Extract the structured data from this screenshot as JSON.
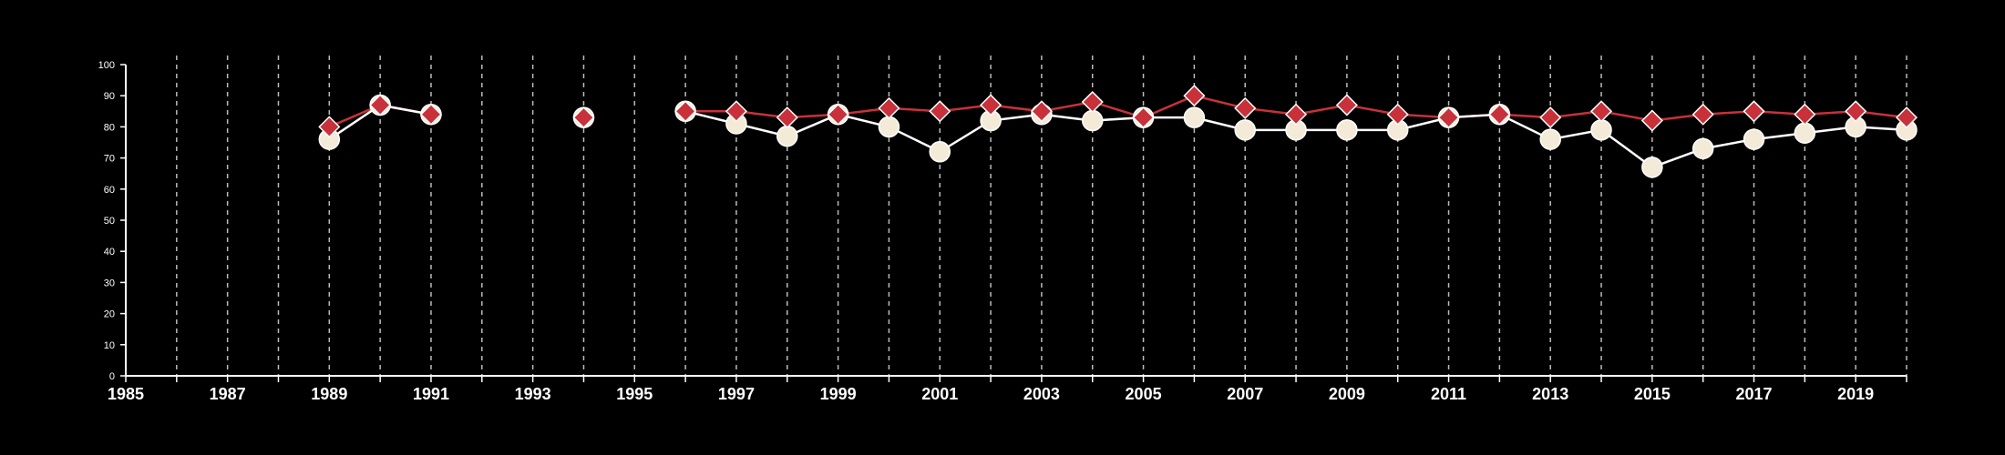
{
  "chart_data": {
    "type": "line",
    "title": "",
    "xlabel": "",
    "ylabel": "",
    "xlim": [
      1985,
      2020
    ],
    "ylim": [
      0,
      100
    ],
    "x_ticks": [
      1985,
      1987,
      1989,
      1991,
      1993,
      1995,
      1997,
      1999,
      2001,
      2003,
      2005,
      2007,
      2009,
      2011,
      2013,
      2015,
      2017,
      2019
    ],
    "y_ticks": [
      0,
      10,
      20,
      30,
      40,
      50,
      60,
      70,
      80,
      90,
      100
    ],
    "vertical_gridlines": "dashed at every year",
    "legend": "none",
    "background": "#000000",
    "axis_color": "#ffffff",
    "series": [
      {
        "marker": "circle",
        "line_color": "#ffffff",
        "marker_fill": "#f4ead8",
        "x": [
          1989,
          1990,
          1991,
          1994,
          1996,
          1997,
          1998,
          1999,
          2000,
          2001,
          2002,
          2003,
          2004,
          2005,
          2006,
          2007,
          2008,
          2009,
          2010,
          2011,
          2012,
          2013,
          2014,
          2015,
          2016,
          2017,
          2018,
          2019,
          2020
        ],
        "values": [
          76,
          87,
          84,
          83,
          85,
          81,
          77,
          84,
          80,
          72,
          82,
          84,
          82,
          83,
          83,
          79,
          79,
          79,
          79,
          83,
          84,
          76,
          79,
          67,
          73,
          76,
          78,
          80,
          79
        ]
      },
      {
        "marker": "diamond",
        "line_color": "#c8313a",
        "marker_fill": "#c8313a",
        "x": [
          1989,
          1990,
          1991,
          1994,
          1996,
          1997,
          1998,
          1999,
          2000,
          2001,
          2002,
          2003,
          2004,
          2005,
          2006,
          2007,
          2008,
          2009,
          2010,
          2011,
          2012,
          2013,
          2014,
          2015,
          2016,
          2017,
          2018,
          2019,
          2020
        ],
        "values": [
          80,
          87,
          84,
          83,
          85,
          85,
          83,
          84,
          86,
          85,
          87,
          85,
          88,
          83,
          90,
          86,
          84,
          87,
          84,
          83,
          84,
          83,
          85,
          82,
          84,
          85,
          84,
          85,
          83
        ]
      }
    ]
  }
}
